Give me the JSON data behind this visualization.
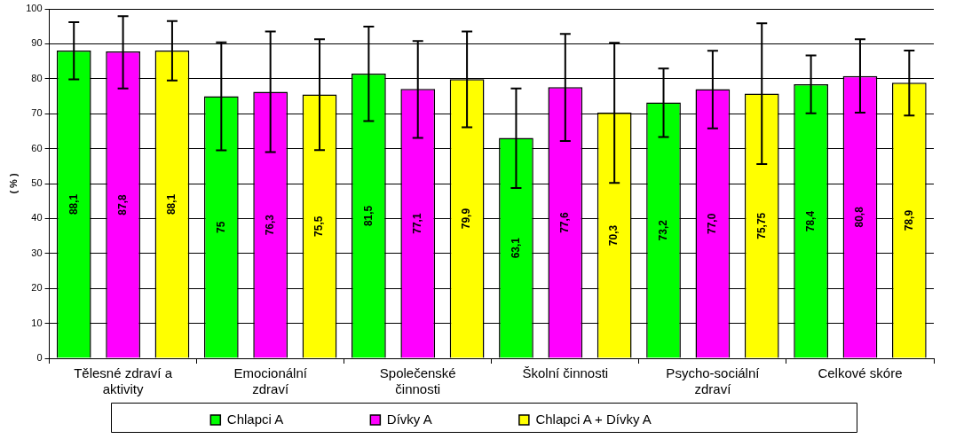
{
  "chart_data": {
    "type": "bar",
    "ylabel": "( % )",
    "categories": [
      "Tělesné zdraví a aktivity",
      "Emocionální zdraví",
      "Společenské činnosti",
      "Školní činnosti",
      "Psycho-sociální zdraví",
      "Celkové skóre"
    ],
    "series": [
      {
        "name": "Chlapci A",
        "color": "#00ff00",
        "values": [
          88.1,
          75,
          81.5,
          63.1,
          73.2,
          78.4
        ],
        "value_labels": [
          "88,1",
          "75",
          "81,5",
          "63,1",
          "73,2",
          "78,4"
        ],
        "errors": [
          [
            79.8,
            96.2
          ],
          [
            59.5,
            90.4
          ],
          [
            67.9,
            94.9
          ],
          [
            48.7,
            77.2
          ],
          [
            63.3,
            82.9
          ],
          [
            70.1,
            86.7
          ]
        ]
      },
      {
        "name": "Dívky A",
        "color": "#ff00ff",
        "values": [
          87.8,
          76.3,
          77.1,
          77.6,
          77.0,
          80.8
        ],
        "value_labels": [
          "87,8",
          "76,3",
          "77,1",
          "77,6",
          "77,0",
          "80,8"
        ],
        "errors": [
          [
            77.2,
            97.9
          ],
          [
            59.0,
            93.5
          ],
          [
            63.1,
            90.8
          ],
          [
            62.2,
            92.8
          ],
          [
            65.8,
            88.0
          ],
          [
            70.3,
            91.3
          ]
        ]
      },
      {
        "name": "Chlapci A + Dívky A",
        "color": "#ffff00",
        "values": [
          88.1,
          75.5,
          79.9,
          70.3,
          75.75,
          78.9
        ],
        "value_labels": [
          "88,1",
          "75,5",
          "79,9",
          "70,3",
          "75,75",
          "78,9"
        ],
        "errors": [
          [
            79.5,
            96.5
          ],
          [
            59.6,
            91.3
          ],
          [
            66.1,
            93.5
          ],
          [
            50.2,
            90.3
          ],
          [
            55.6,
            95.9
          ],
          [
            69.5,
            88.1
          ]
        ]
      }
    ],
    "ylim": [
      0,
      100
    ],
    "yticks": [
      0,
      10,
      20,
      30,
      40,
      50,
      60,
      70,
      80,
      90,
      100
    ],
    "grid": "y",
    "legend": "bottom"
  }
}
